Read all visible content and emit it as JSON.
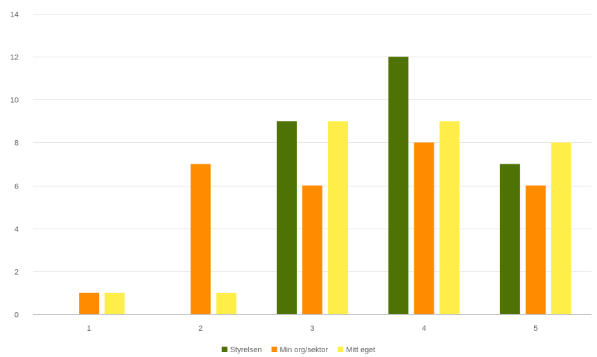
{
  "chart_data": {
    "type": "bar",
    "title": "",
    "xlabel": "",
    "ylabel": "",
    "categories": [
      "1",
      "2",
      "3",
      "4",
      "5"
    ],
    "ylim": [
      0,
      14
    ],
    "yticks": [
      0,
      2,
      4,
      6,
      8,
      10,
      12,
      14
    ],
    "grid": true,
    "legend_position": "bottom",
    "series": [
      {
        "name": "Styrelsen",
        "color": "#4e7304",
        "values": [
          0,
          0,
          9,
          12,
          7
        ]
      },
      {
        "name": "Min org/sektor",
        "color": "#ff8c00",
        "values": [
          1,
          7,
          6,
          8,
          6
        ]
      },
      {
        "name": "Mitt eget",
        "color": "#ffee4a",
        "values": [
          1,
          1,
          9,
          9,
          8
        ]
      }
    ]
  }
}
